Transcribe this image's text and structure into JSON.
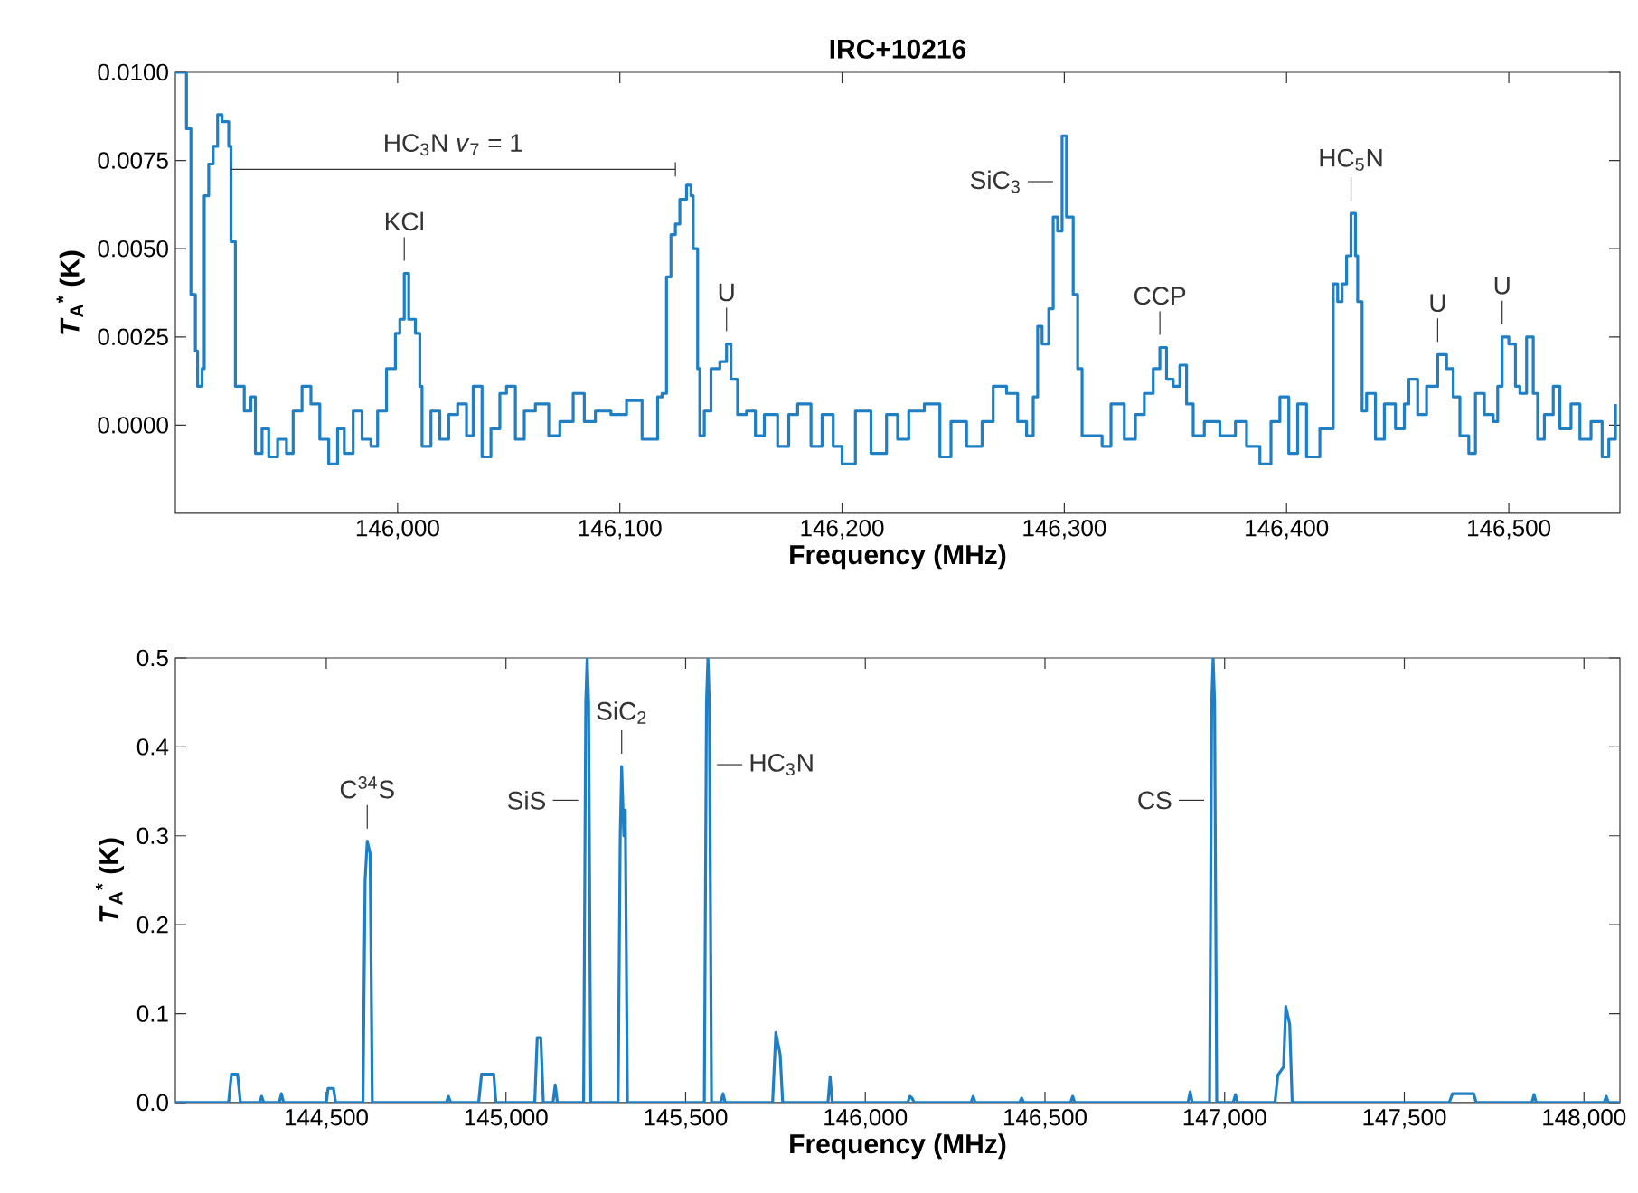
{
  "chart_data": [
    {
      "type": "step",
      "title": "IRC+10216",
      "xlabel": "Frequency (MHz)",
      "ylabel": "*T*$_{A}$$^{*}$ (K)",
      "color": "#1f7fc4",
      "x": [
        145900,
        145904,
        145905,
        145907,
        145909,
        145910,
        145912,
        145913,
        145915,
        145917,
        145919,
        145921,
        145924,
        145925,
        145927,
        145931,
        145934,
        145936,
        145939,
        145942,
        145946,
        145950,
        145953,
        145957,
        145961,
        145965,
        145969,
        145973,
        145976,
        145980,
        145984,
        145988,
        145991,
        145995,
        145999,
        146001,
        146003,
        146005,
        146008,
        146010,
        146011,
        146015,
        146019,
        146023,
        146027,
        146031,
        146034,
        146038,
        146042,
        146046,
        146049,
        146053,
        146057,
        146062,
        146068,
        146073,
        146079,
        146084,
        146089,
        146096,
        146103,
        146110,
        146115,
        146117,
        146119,
        146121,
        146123,
        146125,
        146127,
        146130,
        146132,
        146133,
        146135,
        146136,
        146138,
        146141,
        146145,
        146148,
        146150,
        146153,
        146157,
        146161,
        146165,
        146171,
        146176,
        146180,
        146186,
        146191,
        146196,
        146200,
        146206,
        146213,
        146220,
        146225,
        146230,
        146237,
        146244,
        146249,
        146256,
        146263,
        146268,
        146274,
        146279,
        146283,
        146286,
        146288,
        146290,
        146293,
        146295,
        146297,
        146299,
        146301,
        146304,
        146306,
        146308,
        146313,
        146317,
        146321,
        146327,
        146332,
        146336,
        146340,
        146343,
        146346,
        146349,
        146352,
        146355,
        146358,
        146363,
        146370,
        146377,
        146382,
        146388,
        146393,
        146397,
        146401,
        146405,
        146409,
        146415,
        146420,
        146421,
        146423,
        146425,
        146427,
        146429,
        146431,
        146432,
        146434,
        146436,
        146440,
        146444,
        146449,
        146453,
        146455,
        146459,
        146463,
        146468,
        146472,
        146475,
        146478,
        146482,
        146485,
        146489,
        146493,
        146495,
        146497,
        146500,
        146503,
        146505,
        146508,
        146511,
        146513,
        146516,
        146520,
        146523,
        146528,
        146532,
        146537,
        146542,
        146545,
        146548
      ],
      "values": [
        0.01,
        0.01,
        0.0084,
        0.0037,
        0.0021,
        0.0011,
        0.0016,
        0.0065,
        0.0074,
        0.0079,
        0.0088,
        0.0086,
        0.0079,
        0.0052,
        0.0011,
        0.0004,
        0.0008,
        -0.0008,
        -0.0001,
        -0.0009,
        -0.0004,
        -0.0008,
        0.0004,
        0.0011,
        0.0006,
        -0.0004,
        -0.0011,
        -0.0001,
        -0.0008,
        0.0004,
        -0.0004,
        -0.0006,
        0.0004,
        0.0016,
        0.0026,
        0.003,
        0.0043,
        0.003,
        0.0026,
        0.0011,
        -0.0006,
        0.0004,
        -0.0004,
        0.0003,
        0.0006,
        -0.0003,
        0.0011,
        -0.0009,
        -0.0001,
        0.0009,
        0.0011,
        -0.0004,
        0.0004,
        0.0006,
        -0.0003,
        0.0001,
        0.0009,
        0.0001,
        0.0004,
        0.0003,
        0.0007,
        -0.0004,
        -0.0004,
        0.0008,
        0.0009,
        0.0042,
        0.0054,
        0.0057,
        0.0064,
        0.0068,
        0.0065,
        0.005,
        0.0016,
        -0.0003,
        0.0004,
        0.0016,
        0.0018,
        0.0023,
        0.0013,
        0.0003,
        0.0004,
        -0.0003,
        0.0003,
        -0.0006,
        0.0003,
        0.0006,
        -0.0006,
        0.0003,
        -0.0006,
        -0.0011,
        0.0004,
        -0.0008,
        0.0003,
        -0.0004,
        0.0004,
        0.0006,
        -0.0009,
        0.0001,
        -0.0006,
        0.0001,
        0.0011,
        0.0009,
        0.0001,
        -0.0003,
        0.0008,
        0.0028,
        0.0023,
        0.0033,
        0.0059,
        0.0055,
        0.0082,
        0.0059,
        0.0037,
        0.0016,
        -0.0003,
        -0.0003,
        -0.0006,
        0.0006,
        -0.0004,
        0.0003,
        0.0009,
        0.0016,
        0.0022,
        0.0013,
        0.0011,
        0.0017,
        0.0006,
        -0.0003,
        0.0001,
        -0.0003,
        0.0001,
        -0.0006,
        -0.0011,
        0.0001,
        0.0008,
        -0.0008,
        0.0006,
        -0.0009,
        -0.0001,
        -0.0001,
        0.004,
        0.0035,
        0.004,
        0.0048,
        0.006,
        0.0048,
        0.0035,
        0.0004,
        0.0009,
        -0.0004,
        0.0006,
        -0.0001,
        0.0006,
        0.0013,
        0.0003,
        0.0011,
        0.002,
        0.0016,
        0.0008,
        -0.0003,
        -0.0008,
        0.0009,
        0.0003,
        0.0001,
        0.0011,
        0.0025,
        0.0023,
        0.0011,
        0.0009,
        0.0025,
        0.0009,
        -0.0004,
        0.0003,
        0.0011,
        -0.0001,
        0.0006,
        -0.0004,
        0.0001,
        -0.0009,
        -0.0004,
        0.0006
      ],
      "xlim": [
        145900,
        146550
      ],
      "ylim": [
        -0.0025,
        0.01
      ],
      "xticks": [
        {
          "value": 146000,
          "label": "146,000"
        },
        {
          "value": 146100,
          "label": "146,100"
        },
        {
          "value": 146200,
          "label": "146,200"
        },
        {
          "value": 146300,
          "label": "146,300"
        },
        {
          "value": 146400,
          "label": "146,400"
        },
        {
          "value": 146500,
          "label": "146,500"
        }
      ],
      "yticks": [
        {
          "value": 0,
          "label": "0.0000"
        },
        {
          "value": 0.0025,
          "label": "0.0025"
        },
        {
          "value": 0.005,
          "label": "0.0050"
        },
        {
          "value": 0.0075,
          "label": "0.0075"
        },
        {
          "value": 0.01,
          "label": "0.0100"
        }
      ],
      "series": [
        {
          "type": "line",
          "name": "HC$_{3}$N *v*$_{7}$ = 1",
          "color": "#333333",
          "x": [
            145925,
            146125
          ],
          "values": [
            0.00725,
            0.00725
          ],
          "errors": [
            0.0002,
            0.0002
          ]
        }
      ],
      "annotations": [
        {
          "text": "KCl",
          "x": 146003,
          "y": 0.0043
        },
        {
          "text": "U",
          "x": 146148,
          "y": 0.0023
        },
        {
          "text": "SiC$_{3}$",
          "x": 146299,
          "y": 0.0069
        },
        {
          "text": "CCP",
          "x": 146343,
          "y": 0.0022
        },
        {
          "text": "HC$_{5}$N",
          "x": 146429,
          "y": 0.006
        },
        {
          "text": "U",
          "x": 146468,
          "y": 0.002
        },
        {
          "text": "U",
          "x": 146497,
          "y": 0.0025
        }
      ]
    },
    {
      "type": "line",
      "xlabel": "Frequency (MHz)",
      "ylabel": "*T*$_{A}$$^{*}$ (K)",
      "color": "#1f7fc4",
      "x": [
        144080,
        144228,
        144236,
        144253,
        144261,
        144314,
        144320,
        144326,
        144369,
        144375,
        144381,
        144500,
        144505,
        144520,
        144526,
        144602,
        144608,
        144614,
        144622,
        144628,
        144834,
        144840,
        144846,
        144924,
        144932,
        144966,
        144972,
        145080,
        145087,
        145097,
        145104,
        145131,
        145137,
        145143,
        145216,
        145222,
        145226,
        145230,
        145236,
        145312,
        145318,
        145322,
        145328,
        145332,
        145338,
        145552,
        145558,
        145562,
        145566,
        145572,
        145598,
        145604,
        145610,
        145742,
        145751,
        145763,
        145770,
        145896,
        145902,
        145908,
        146118,
        146124,
        146130,
        146136,
        146294,
        146300,
        146306,
        146429,
        146435,
        146441,
        146571,
        146577,
        146583,
        146898,
        146904,
        146910,
        146958,
        146964,
        146968,
        146972,
        146978,
        147024,
        147030,
        147036,
        147140,
        147148,
        147164,
        147170,
        147181,
        147188,
        147625,
        147634,
        147693,
        147700,
        147855,
        147861,
        147867,
        148056,
        148062,
        148068,
        148100
      ],
      "values": [
        0,
        0,
        0.032,
        0.032,
        0,
        0,
        0.007,
        0,
        0,
        0.01,
        0,
        0,
        0.016,
        0.016,
        0,
        0,
        0.25,
        0.294,
        0.28,
        0,
        0,
        0.007,
        0,
        0,
        0.032,
        0.032,
        0,
        0,
        0.073,
        0.073,
        0,
        0,
        0.02,
        0,
        0,
        0.45,
        0.5,
        0.45,
        0,
        0,
        0.3,
        0.378,
        0.3,
        0.329,
        0,
        0,
        0.45,
        0.5,
        0.45,
        0,
        0,
        0.01,
        0,
        0,
        0.079,
        0.054,
        0,
        0,
        0.029,
        0,
        0,
        0.007,
        0.005,
        0,
        0,
        0.007,
        0,
        0,
        0.005,
        0,
        0,
        0.007,
        0,
        0,
        0.012,
        0,
        0,
        0.45,
        0.5,
        0.45,
        0,
        0,
        0.009,
        0,
        0,
        0.031,
        0.04,
        0.108,
        0.088,
        0,
        0,
        0.01,
        0.01,
        0,
        0,
        0.009,
        0,
        0,
        0.007,
        0,
        0
      ],
      "xlim": [
        144080,
        148100
      ],
      "ylim": [
        0,
        0.5
      ],
      "xticks": [
        {
          "value": 144500,
          "label": "144,500"
        },
        {
          "value": 145000,
          "label": "145,000"
        },
        {
          "value": 145500,
          "label": "145,500"
        },
        {
          "value": 146000,
          "label": "146,000"
        },
        {
          "value": 146500,
          "label": "146,500"
        },
        {
          "value": 147000,
          "label": "147,000"
        },
        {
          "value": 147500,
          "label": "147,500"
        },
        {
          "value": 148000,
          "label": "148,000"
        }
      ],
      "yticks": [
        {
          "value": 0,
          "label": "0.0"
        },
        0.1,
        0.2,
        0.3,
        0.4,
        0.5
      ],
      "annotations": [
        {
          "text": "C$^{34}$S",
          "x": 144614,
          "y": 0.294
        },
        {
          "text": "SiS",
          "x": 145226,
          "y": 0.34
        },
        {
          "text": "SiC$_{2}$",
          "x": 145322,
          "y": 0.378
        },
        {
          "text": "HC$_{3}$N",
          "x": 145562,
          "y": 0.38
        },
        {
          "text": "CS",
          "x": 146968,
          "y": 0.34
        }
      ]
    }
  ]
}
